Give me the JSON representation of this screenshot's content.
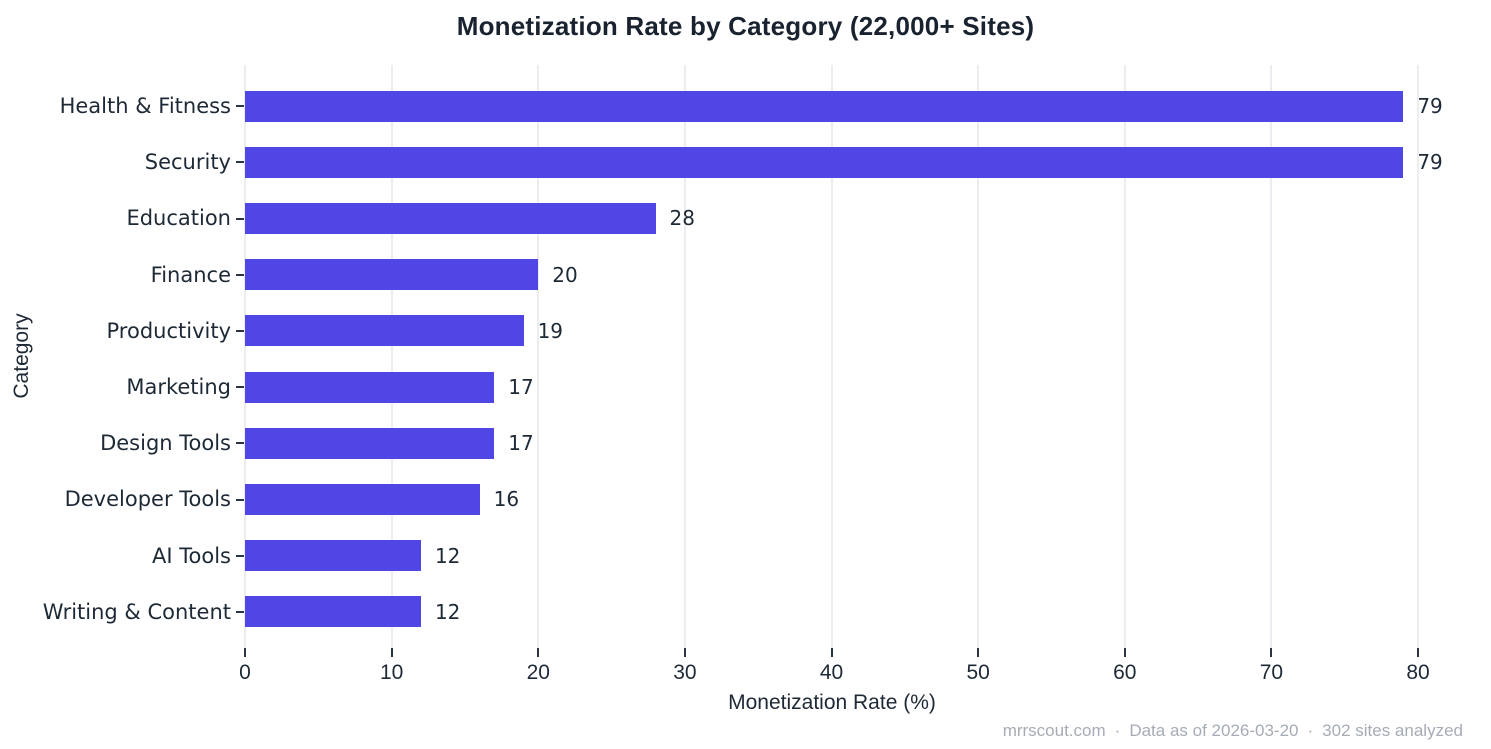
{
  "title": "Monetization Rate by Category (22,000+ Sites)",
  "chart_data": {
    "type": "bar",
    "orientation": "horizontal",
    "title": "Monetization Rate by Category (22,000+ Sites)",
    "xlabel": "Monetization Rate (%)",
    "ylabel": "Category",
    "categories": [
      "Health & Fitness",
      "Security",
      "Education",
      "Finance",
      "Productivity",
      "Marketing",
      "Design Tools",
      "Developer Tools",
      "AI Tools",
      "Writing & Content"
    ],
    "values": [
      79,
      79,
      28,
      20,
      19,
      17,
      17,
      16,
      12,
      12
    ],
    "value_labels_shown": true,
    "xlim": [
      0,
      80
    ],
    "x_ticks": [
      0,
      10,
      20,
      30,
      40,
      50,
      60,
      70,
      80
    ],
    "grid": "vertical-light",
    "legend": "none",
    "bar_color": "#4f46e5",
    "background_color": "#ffffff"
  },
  "colors": {
    "bar": "#4f46e5",
    "title_text": "#19222f",
    "axis_text": "#1e2936",
    "gridline": "#ececf1",
    "tick_mark": "#2b3442",
    "footer_text": "#a6acb6"
  },
  "footer": {
    "separator": "·",
    "items": [
      "mrrscout.com",
      "Data as of 2026-03-20",
      "302 sites analyzed"
    ]
  }
}
